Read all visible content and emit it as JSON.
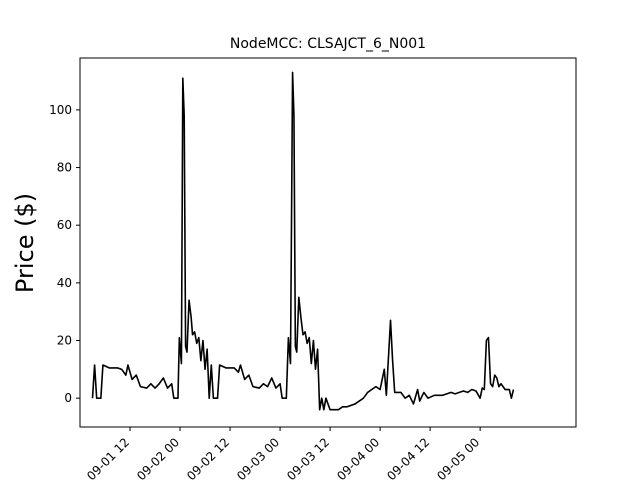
{
  "chart_data": {
    "type": "line",
    "title": "NodeMCC: CLSAJCT_6_N001",
    "xlabel": "",
    "ylabel": "Price ($)",
    "ylim": [
      -10,
      118
    ],
    "xlim": [
      "2020-09-01 00:00",
      "2020-09-05 23:00"
    ],
    "y_ticks": [
      0,
      20,
      40,
      60,
      80,
      100
    ],
    "x_ticks": [
      "2020-09-01 12:00",
      "2020-09-02 00:00",
      "2020-09-02 12:00",
      "2020-09-03 00:00",
      "2020-09-03 12:00",
      "2020-09-04 00:00",
      "2020-09-04 12:00",
      "2020-09-05 00:00"
    ],
    "x_tick_labels": [
      "09-01 12",
      "09-02 00",
      "09-02 12",
      "09-03 00",
      "09-03 12",
      "09-04 00",
      "09-04 12",
      "09-05 00"
    ],
    "grid": false,
    "series": [
      {
        "color": "#000000",
        "points": [
          [
            "2020-09-01 03:00",
            0
          ],
          [
            "2020-09-01 03:30",
            11.5
          ],
          [
            "2020-09-01 04:00",
            0
          ],
          [
            "2020-09-01 05:00",
            0
          ],
          [
            "2020-09-01 05:30",
            11.5
          ],
          [
            "2020-09-01 07:00",
            10.5
          ],
          [
            "2020-09-01 09:00",
            10.5
          ],
          [
            "2020-09-01 10:00",
            10
          ],
          [
            "2020-09-01 11:00",
            8
          ],
          [
            "2020-09-01 11:30",
            11.5
          ],
          [
            "2020-09-01 12:30",
            6.5
          ],
          [
            "2020-09-01 13:30",
            8
          ],
          [
            "2020-09-01 14:30",
            4
          ],
          [
            "2020-09-01 16:00",
            3.5
          ],
          [
            "2020-09-01 17:00",
            5
          ],
          [
            "2020-09-01 18:00",
            3.5
          ],
          [
            "2020-09-01 19:00",
            5
          ],
          [
            "2020-09-01 20:00",
            7
          ],
          [
            "2020-09-01 21:00",
            3.5
          ],
          [
            "2020-09-01 22:00",
            5
          ],
          [
            "2020-09-01 22:30",
            0
          ],
          [
            "2020-09-01 23:30",
            0
          ],
          [
            "2020-09-01 23:50",
            21
          ],
          [
            "2020-09-02 00:20",
            12
          ],
          [
            "2020-09-02 00:40",
            111
          ],
          [
            "2020-09-02 01:00",
            98
          ],
          [
            "2020-09-02 01:20",
            18
          ],
          [
            "2020-09-02 01:40",
            16
          ],
          [
            "2020-09-02 02:10",
            34
          ],
          [
            "2020-09-02 02:40",
            28
          ],
          [
            "2020-09-02 03:00",
            22
          ],
          [
            "2020-09-02 03:30",
            23
          ],
          [
            "2020-09-02 04:00",
            19
          ],
          [
            "2020-09-02 04:30",
            21
          ],
          [
            "2020-09-02 05:00",
            13
          ],
          [
            "2020-09-02 05:30",
            20
          ],
          [
            "2020-09-02 06:00",
            10
          ],
          [
            "2020-09-02 06:30",
            17
          ],
          [
            "2020-09-02 07:00",
            0
          ],
          [
            "2020-09-02 07:30",
            11.5
          ],
          [
            "2020-09-02 08:00",
            0
          ],
          [
            "2020-09-02 09:00",
            0
          ],
          [
            "2020-09-02 09:30",
            11.5
          ],
          [
            "2020-09-02 11:00",
            10.5
          ],
          [
            "2020-09-02 13:00",
            10.5
          ],
          [
            "2020-09-02 14:00",
            9
          ],
          [
            "2020-09-02 14:30",
            11.5
          ],
          [
            "2020-09-02 15:30",
            6.5
          ],
          [
            "2020-09-02 16:30",
            8
          ],
          [
            "2020-09-02 17:30",
            4
          ],
          [
            "2020-09-02 19:00",
            3.5
          ],
          [
            "2020-09-02 20:00",
            5
          ],
          [
            "2020-09-02 21:00",
            4
          ],
          [
            "2020-09-02 22:00",
            7
          ],
          [
            "2020-09-02 23:00",
            3.5
          ],
          [
            "2020-09-03 00:00",
            5
          ],
          [
            "2020-09-03 00:30",
            0
          ],
          [
            "2020-09-03 01:30",
            0
          ],
          [
            "2020-09-03 02:00",
            21
          ],
          [
            "2020-09-03 02:30",
            12
          ],
          [
            "2020-09-03 03:00",
            113
          ],
          [
            "2020-09-03 03:20",
            98
          ],
          [
            "2020-09-03 03:40",
            18
          ],
          [
            "2020-09-03 04:00",
            16
          ],
          [
            "2020-09-03 04:30",
            35
          ],
          [
            "2020-09-03 05:00",
            28
          ],
          [
            "2020-09-03 05:30",
            22
          ],
          [
            "2020-09-03 06:00",
            23
          ],
          [
            "2020-09-03 06:30",
            19
          ],
          [
            "2020-09-03 07:00",
            21
          ],
          [
            "2020-09-03 07:30",
            12
          ],
          [
            "2020-09-03 08:00",
            20
          ],
          [
            "2020-09-03 08:30",
            10
          ],
          [
            "2020-09-03 09:00",
            17
          ],
          [
            "2020-09-03 09:30",
            -4
          ],
          [
            "2020-09-03 10:00",
            0
          ],
          [
            "2020-09-03 10:30",
            -4
          ],
          [
            "2020-09-03 11:00",
            0
          ],
          [
            "2020-09-03 12:00",
            -4
          ],
          [
            "2020-09-03 14:00",
            -4
          ],
          [
            "2020-09-03 15:00",
            -3
          ],
          [
            "2020-09-03 16:00",
            -3
          ],
          [
            "2020-09-03 18:00",
            -2
          ],
          [
            "2020-09-03 19:00",
            -1
          ],
          [
            "2020-09-03 20:00",
            0
          ],
          [
            "2020-09-03 21:00",
            2
          ],
          [
            "2020-09-03 22:00",
            3
          ],
          [
            "2020-09-03 23:00",
            4
          ],
          [
            "2020-09-04 00:00",
            3
          ],
          [
            "2020-09-04 01:00",
            10
          ],
          [
            "2020-09-04 01:30",
            1
          ],
          [
            "2020-09-04 02:30",
            27
          ],
          [
            "2020-09-04 03:00",
            13
          ],
          [
            "2020-09-04 03:30",
            2
          ],
          [
            "2020-09-04 05:00",
            2
          ],
          [
            "2020-09-04 06:00",
            0
          ],
          [
            "2020-09-04 07:00",
            1
          ],
          [
            "2020-09-04 08:00",
            -2
          ],
          [
            "2020-09-04 09:00",
            3
          ],
          [
            "2020-09-04 09:30",
            -1
          ],
          [
            "2020-09-04 10:30",
            2
          ],
          [
            "2020-09-04 11:30",
            0
          ],
          [
            "2020-09-04 13:00",
            1
          ],
          [
            "2020-09-04 15:00",
            1
          ],
          [
            "2020-09-04 16:00",
            1.5
          ],
          [
            "2020-09-04 17:00",
            2
          ],
          [
            "2020-09-04 18:00",
            1.5
          ],
          [
            "2020-09-04 19:00",
            2
          ],
          [
            "2020-09-04 20:00",
            2.5
          ],
          [
            "2020-09-04 21:00",
            2
          ],
          [
            "2020-09-04 22:00",
            3
          ],
          [
            "2020-09-04 23:00",
            2.5
          ],
          [
            "2020-09-05 00:00",
            0
          ],
          [
            "2020-09-05 00:30",
            3.5
          ],
          [
            "2020-09-05 01:00",
            3
          ],
          [
            "2020-09-05 01:30",
            20
          ],
          [
            "2020-09-05 02:00",
            21
          ],
          [
            "2020-09-05 02:30",
            5
          ],
          [
            "2020-09-05 03:00",
            4
          ],
          [
            "2020-09-05 03:30",
            8
          ],
          [
            "2020-09-05 04:00",
            7
          ],
          [
            "2020-09-05 04:30",
            4
          ],
          [
            "2020-09-05 05:00",
            5
          ],
          [
            "2020-09-05 06:00",
            3
          ],
          [
            "2020-09-05 07:00",
            3
          ],
          [
            "2020-09-05 07:30",
            0
          ],
          [
            "2020-09-05 08:00",
            3
          ]
        ]
      }
    ]
  }
}
